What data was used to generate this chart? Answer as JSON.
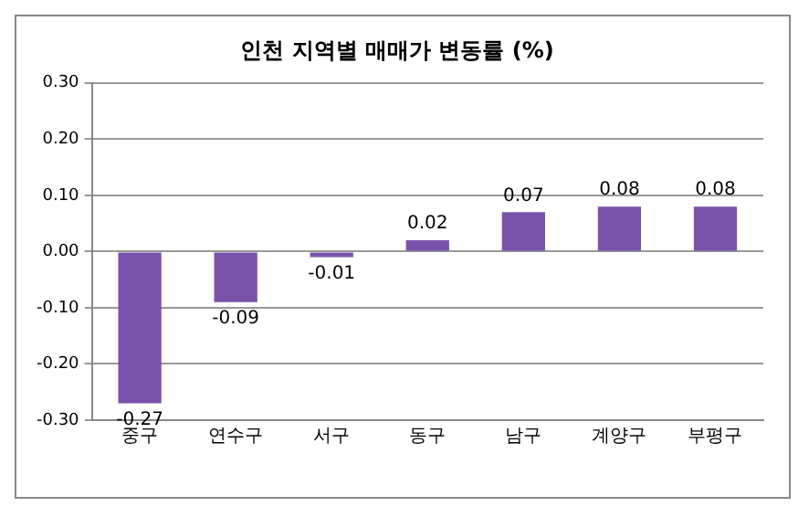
{
  "chart_data": {
    "type": "bar",
    "title": "인천 지역별 매매가 변동률 (%)",
    "categories": [
      "중구",
      "연수구",
      "서구",
      "동구",
      "남구",
      "계양구",
      "부평구"
    ],
    "values": [
      -0.27,
      -0.09,
      -0.01,
      0.02,
      0.07,
      0.08,
      0.08
    ],
    "color": "#7b52ab",
    "ylim": [
      -0.3,
      0.3
    ],
    "yticks": [
      {
        "value": -0.3,
        "label": "-0.30"
      },
      {
        "value": -0.2,
        "label": "-0.20"
      },
      {
        "value": -0.1,
        "label": "-0.10"
      },
      {
        "value": 0,
        "label": "0.00"
      },
      {
        "value": 0.1,
        "label": "0.10"
      },
      {
        "value": 0.2,
        "label": "0.20"
      },
      {
        "value": 0.3,
        "label": "0.30"
      }
    ],
    "grid": "y",
    "data_labels": true,
    "legend": false
  }
}
